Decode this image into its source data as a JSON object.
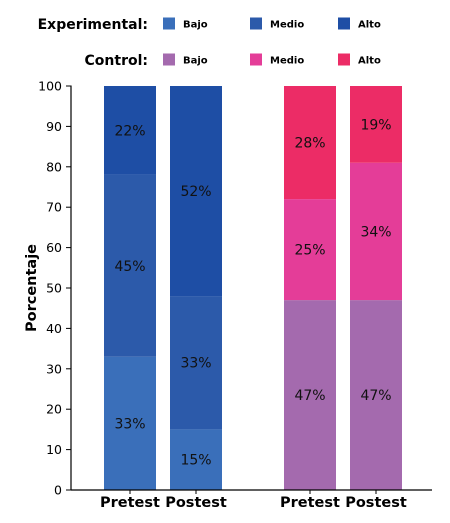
{
  "chart_data": {
    "type": "bar",
    "stacked": true,
    "ylabel": "Porcentaje",
    "ylim": [
      0,
      100
    ],
    "yticks": [
      0,
      10,
      20,
      30,
      40,
      50,
      60,
      70,
      80,
      90,
      100
    ],
    "categories": [
      "Pretest",
      "Postest",
      "Pretest",
      "Postest"
    ],
    "legend_groups": [
      {
        "title": "Experimental:",
        "series": [
          {
            "name": "Bajo",
            "color": "#3a6fba"
          },
          {
            "name": "Medio",
            "color": "#2c5aaa"
          },
          {
            "name": "Alto",
            "color": "#1e4ea5"
          }
        ]
      },
      {
        "title": "Control:",
        "series": [
          {
            "name": "Bajo",
            "color": "#a46aae"
          },
          {
            "name": "Medio",
            "color": "#e43d98"
          },
          {
            "name": "Alto",
            "color": "#ec2c66"
          }
        ]
      }
    ],
    "groups": [
      {
        "name": "Experimental",
        "bars": [
          {
            "category": "Pretest",
            "values": [
              33,
              45,
              22
            ],
            "labels": [
              "33%",
              "45%",
              "22%"
            ]
          },
          {
            "category": "Postest",
            "values": [
              15,
              33,
              52
            ],
            "labels": [
              "15%",
              "33%",
              "52%"
            ]
          }
        ]
      },
      {
        "name": "Control",
        "bars": [
          {
            "category": "Pretest",
            "values": [
              47,
              25,
              28
            ],
            "labels": [
              "47%",
              "25%",
              "28%"
            ]
          },
          {
            "category": "Postest",
            "values": [
              47,
              34,
              19
            ],
            "labels": [
              "47%",
              "34%",
              "19%"
            ]
          }
        ]
      }
    ]
  }
}
